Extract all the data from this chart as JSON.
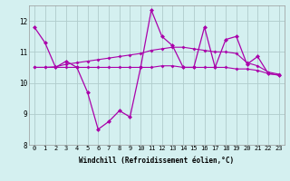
{
  "x": [
    0,
    1,
    2,
    3,
    4,
    5,
    6,
    7,
    8,
    9,
    10,
    11,
    12,
    13,
    14,
    15,
    16,
    17,
    18,
    19,
    20,
    21,
    22,
    23
  ],
  "line1": [
    11.8,
    11.3,
    10.5,
    10.7,
    10.5,
    9.7,
    8.5,
    8.75,
    9.1,
    8.9,
    10.5,
    12.35,
    11.5,
    11.2,
    10.5,
    10.5,
    11.8,
    10.5,
    11.4,
    11.5,
    10.6,
    10.85,
    10.3,
    10.25
  ],
  "line2": [
    10.5,
    10.5,
    10.5,
    10.5,
    10.5,
    10.5,
    10.5,
    10.5,
    10.5,
    10.5,
    10.5,
    10.5,
    10.55,
    10.55,
    10.5,
    10.5,
    10.5,
    10.5,
    10.5,
    10.45,
    10.45,
    10.4,
    10.3,
    10.25
  ],
  "line3": [
    10.5,
    10.5,
    10.52,
    10.6,
    10.65,
    10.7,
    10.75,
    10.8,
    10.85,
    10.9,
    10.95,
    11.05,
    11.1,
    11.15,
    11.15,
    11.1,
    11.05,
    11.0,
    11.0,
    10.95,
    10.65,
    10.55,
    10.35,
    10.28
  ],
  "line_color": "#aa00aa",
  "bg_color": "#d4f0f0",
  "grid_color": "#b0cccc",
  "xlabel": "Windchill (Refroidissement éolien,°C)",
  "ylim": [
    8,
    12.5
  ],
  "xlim": [
    -0.5,
    23.5
  ],
  "yticks": [
    8,
    9,
    10,
    11,
    12
  ],
  "xticks": [
    0,
    1,
    2,
    3,
    4,
    5,
    6,
    7,
    8,
    9,
    10,
    11,
    12,
    13,
    14,
    15,
    16,
    17,
    18,
    19,
    20,
    21,
    22,
    23
  ],
  "marker": "D",
  "markersize_main": 2.5,
  "markersize_sub": 2.0,
  "linewidth_main": 0.9,
  "linewidth_sub": 0.8,
  "tick_fontsize": 5.0,
  "xlabel_fontsize": 5.5
}
